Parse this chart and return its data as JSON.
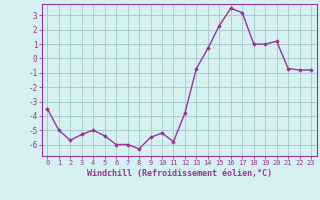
{
  "x": [
    0,
    1,
    2,
    3,
    4,
    5,
    6,
    7,
    8,
    9,
    10,
    11,
    12,
    13,
    14,
    15,
    16,
    17,
    18,
    19,
    20,
    21,
    22,
    23
  ],
  "y": [
    -3.5,
    -5.0,
    -5.7,
    -5.3,
    -5.0,
    -5.4,
    -6.0,
    -6.0,
    -6.3,
    -5.5,
    -5.2,
    -5.8,
    -3.8,
    -0.7,
    0.7,
    2.3,
    3.5,
    3.2,
    1.0,
    1.0,
    1.2,
    -0.7,
    -0.8,
    -0.8
  ],
  "line_color": "#993399",
  "marker": "D",
  "marker_size": 1.8,
  "bg_color": "#d5f0f0",
  "grid_color": "#aacccc",
  "xlabel": "Windchill (Refroidissement éolien,°C)",
  "xlim": [
    -0.5,
    23.5
  ],
  "ylim": [
    -6.8,
    3.8
  ],
  "yticks": [
    -6,
    -5,
    -4,
    -3,
    -2,
    -1,
    0,
    1,
    2,
    3
  ],
  "xticks": [
    0,
    1,
    2,
    3,
    4,
    5,
    6,
    7,
    8,
    9,
    10,
    11,
    12,
    13,
    14,
    15,
    16,
    17,
    18,
    19,
    20,
    21,
    22,
    23
  ],
  "tick_color": "#993399",
  "label_color": "#993399",
  "spine_color": "#993399",
  "linewidth": 1.0,
  "xtick_fontsize": 5.0,
  "ytick_fontsize": 5.5,
  "xlabel_fontsize": 6.0
}
